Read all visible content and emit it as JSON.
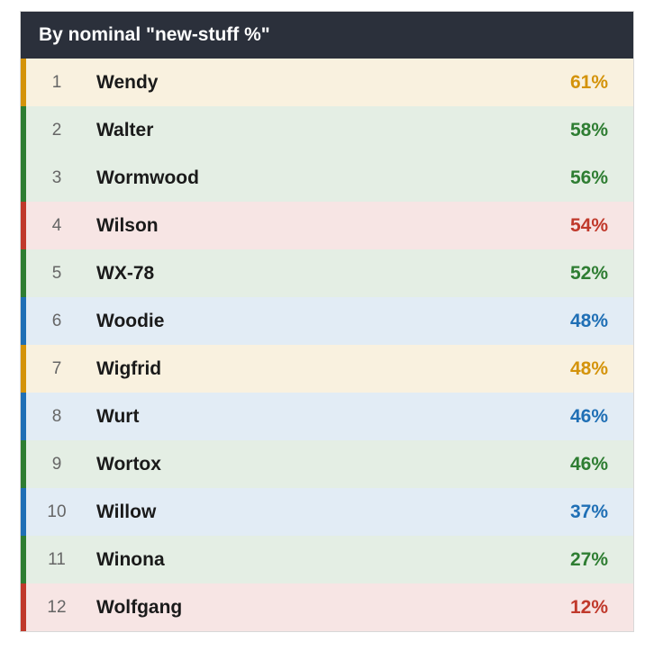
{
  "header": {
    "title": "By nominal \"new-stuff %\""
  },
  "rows": [
    {
      "rank": 1,
      "name": "Wendy",
      "value": "61%",
      "color": "#d4930a"
    },
    {
      "rank": 2,
      "name": "Walter",
      "value": "58%",
      "color": "#2e7d32"
    },
    {
      "rank": 3,
      "name": "Wormwood",
      "value": "56%",
      "color": "#2e7d32"
    },
    {
      "rank": 4,
      "name": "Wilson",
      "value": "54%",
      "color": "#c0392b"
    },
    {
      "rank": 5,
      "name": "WX-78",
      "value": "52%",
      "color": "#2e7d32"
    },
    {
      "rank": 6,
      "name": "Woodie",
      "value": "48%",
      "color": "#1f6fb5"
    },
    {
      "rank": 7,
      "name": "Wigfrid",
      "value": "48%",
      "color": "#d4930a"
    },
    {
      "rank": 8,
      "name": "Wurt",
      "value": "46%",
      "color": "#1f6fb5"
    },
    {
      "rank": 9,
      "name": "Wortox",
      "value": "46%",
      "color": "#2e7d32"
    },
    {
      "rank": 10,
      "name": "Willow",
      "value": "37%",
      "color": "#1f6fb5"
    },
    {
      "rank": 11,
      "name": "Winona",
      "value": "27%",
      "color": "#2e7d32"
    },
    {
      "rank": 12,
      "name": "Wolfgang",
      "value": "12%",
      "color": "#c0392b"
    }
  ]
}
